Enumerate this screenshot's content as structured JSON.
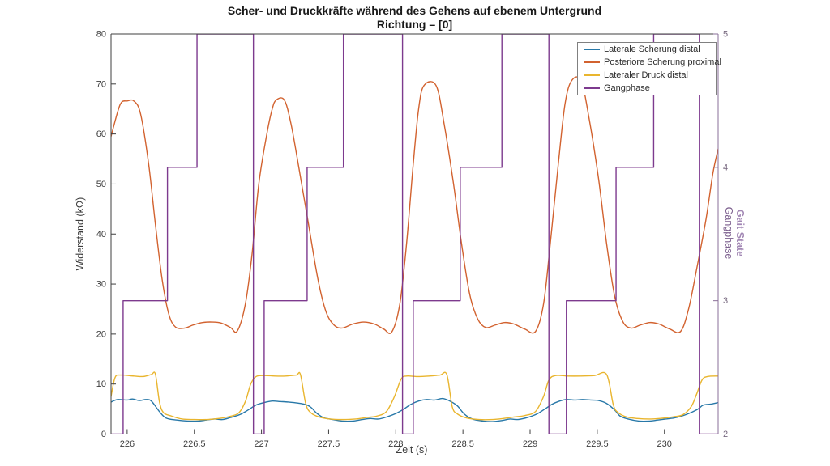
{
  "figure": {
    "title_line1": "Scher- und Druckkräfte während des Gehens auf ebenem Untergrund",
    "title_line2": "Richtung – [0]"
  },
  "chart_data": {
    "type": "line",
    "title": "Scher- und Druckkräfte während des Gehens auf ebenem Untergrund",
    "subtitle": "Richtung – [0]",
    "xlabel": "Zeit (s)",
    "ylabel_left": "Widerstand (kΩ)",
    "ylabel_right_line1": "Gangphase",
    "ylabel_right_line2": "Gait State",
    "grid": false,
    "legend_position": "top-right",
    "x_range": [
      225.88,
      230.4
    ],
    "x_ticks": [
      226,
      226.5,
      227,
      227.5,
      228,
      228.5,
      229,
      229.5,
      230
    ],
    "x_tick_labels": [
      "226",
      "226.5",
      "227",
      "227.5",
      "228",
      "228.5",
      "229",
      "229.5",
      "230"
    ],
    "y_left_range": [
      0,
      80
    ],
    "y_left_ticks": [
      0,
      10,
      20,
      30,
      40,
      50,
      60,
      70,
      80
    ],
    "y_right_range": [
      2,
      5
    ],
    "y_right_ticks": [
      2,
      3,
      4,
      5
    ],
    "axis_colors": {
      "left": "#3f3f3f",
      "bottom": "#3f3f3f",
      "top": "#3f3f3f",
      "right": "#8a6f98"
    },
    "series": [
      {
        "name": "Laterale Scherung distal",
        "color": "#2878a8",
        "axis": "left",
        "style": "smooth",
        "x": [
          225.88,
          225.93,
          226.0,
          226.04,
          226.09,
          226.14,
          226.18,
          226.24,
          226.29,
          226.37,
          226.45,
          226.53,
          226.59,
          226.65,
          226.71,
          226.77,
          226.84,
          226.9,
          226.96,
          227.02,
          227.08,
          227.14,
          227.2,
          227.27,
          227.33,
          227.37,
          227.41,
          227.46,
          227.53,
          227.6,
          227.68,
          227.75,
          227.81,
          227.87,
          227.93,
          228.0,
          228.06,
          228.11,
          228.17,
          228.23,
          228.29,
          228.35,
          228.41,
          228.46,
          228.51,
          228.57,
          228.65,
          228.72,
          228.79,
          228.85,
          228.91,
          228.98,
          229.05,
          229.11,
          229.16,
          229.21,
          229.27,
          229.33,
          229.39,
          229.45,
          229.51,
          229.57,
          229.63,
          229.67,
          229.73,
          229.81,
          229.89,
          229.95,
          230.01,
          230.07,
          230.13,
          230.19,
          230.25,
          230.29,
          230.35,
          230.4
        ],
        "y": [
          6.4,
          6.9,
          6.8,
          7.0,
          6.7,
          6.9,
          6.6,
          4.5,
          3.2,
          2.8,
          2.6,
          2.6,
          2.8,
          3.0,
          2.9,
          3.3,
          3.9,
          4.8,
          5.8,
          6.3,
          6.6,
          6.5,
          6.4,
          6.2,
          5.9,
          5.3,
          4.2,
          3.3,
          2.9,
          2.6,
          2.6,
          2.9,
          3.1,
          3.0,
          3.4,
          4.1,
          5.0,
          5.9,
          6.6,
          6.9,
          6.8,
          7.1,
          6.5,
          5.6,
          4.0,
          3.0,
          2.6,
          2.5,
          2.7,
          3.0,
          2.9,
          3.3,
          4.0,
          5.0,
          5.9,
          6.5,
          6.9,
          6.8,
          6.9,
          6.8,
          6.7,
          6.1,
          4.8,
          3.6,
          3.0,
          2.6,
          2.6,
          2.8,
          3.0,
          3.2,
          3.6,
          4.2,
          5.0,
          5.8,
          6.0,
          6.3
        ]
      },
      {
        "name": "Posteriore Scherung proximal",
        "color": "#d2622f",
        "axis": "left",
        "style": "smooth",
        "x": [
          225.88,
          225.93,
          225.96,
          226.0,
          226.05,
          226.1,
          226.16,
          226.21,
          226.26,
          226.31,
          226.36,
          226.43,
          226.49,
          226.56,
          226.63,
          226.7,
          226.77,
          226.82,
          226.88,
          226.93,
          226.98,
          227.04,
          227.08,
          227.11,
          227.17,
          227.22,
          227.28,
          227.35,
          227.42,
          227.48,
          227.54,
          227.6,
          227.68,
          227.76,
          227.84,
          227.91,
          227.97,
          228.03,
          228.08,
          228.13,
          228.17,
          228.21,
          228.3,
          228.36,
          228.43,
          228.49,
          228.55,
          228.61,
          228.67,
          228.74,
          228.81,
          228.88,
          228.96,
          229.04,
          229.1,
          229.15,
          229.21,
          229.26,
          229.31,
          229.38,
          229.44,
          229.51,
          229.57,
          229.63,
          229.69,
          229.75,
          229.82,
          229.89,
          229.96,
          230.04,
          230.12,
          230.18,
          230.24,
          230.31,
          230.36,
          230.4
        ],
        "y": [
          59.5,
          64.5,
          66.4,
          66.6,
          66.6,
          64.0,
          54.0,
          42.0,
          31.0,
          24.0,
          21.4,
          21.2,
          21.8,
          22.3,
          22.4,
          22.2,
          21.3,
          20.6,
          26.0,
          36.0,
          50.0,
          60.0,
          65.0,
          66.8,
          66.8,
          62.0,
          53.0,
          42.0,
          31.0,
          24.5,
          21.8,
          21.2,
          22.0,
          22.4,
          22.0,
          21.0,
          20.4,
          26.0,
          38.0,
          54.0,
          65.0,
          69.7,
          69.7,
          62.0,
          50.0,
          38.0,
          28.0,
          23.0,
          21.3,
          21.8,
          22.3,
          22.0,
          21.0,
          20.5,
          26.0,
          38.0,
          54.0,
          66.0,
          70.7,
          70.6,
          63.0,
          51.0,
          38.0,
          27.5,
          22.5,
          21.2,
          21.8,
          22.3,
          22.0,
          21.0,
          20.5,
          25.0,
          33.0,
          43.0,
          52.0,
          57.0
        ]
      },
      {
        "name": "Lateraler Druck distal",
        "color": "#e9b52e",
        "axis": "left",
        "style": "smooth",
        "x": [
          225.88,
          225.91,
          225.95,
          226.05,
          226.12,
          226.18,
          226.21,
          226.24,
          226.27,
          226.33,
          226.41,
          226.5,
          226.6,
          226.68,
          226.76,
          226.83,
          226.88,
          226.92,
          226.96,
          227.02,
          227.1,
          227.18,
          227.26,
          227.29,
          227.33,
          227.37,
          227.43,
          227.51,
          227.6,
          227.7,
          227.78,
          227.86,
          227.93,
          227.99,
          228.04,
          228.08,
          228.16,
          228.25,
          228.33,
          228.38,
          228.42,
          228.46,
          228.53,
          228.62,
          228.72,
          228.8,
          228.88,
          228.96,
          229.04,
          229.1,
          229.14,
          229.19,
          229.28,
          229.38,
          229.48,
          229.57,
          229.62,
          229.66,
          229.72,
          229.8,
          229.9,
          230.0,
          230.08,
          230.14,
          230.2,
          230.24,
          230.28,
          230.32,
          230.4
        ],
        "y": [
          7.5,
          11.3,
          11.8,
          11.6,
          11.5,
          11.9,
          12.0,
          6.5,
          4.3,
          3.6,
          3.0,
          2.9,
          2.9,
          3.1,
          3.5,
          4.2,
          6.5,
          10.0,
          11.5,
          11.7,
          11.6,
          11.6,
          11.8,
          11.9,
          6.0,
          4.2,
          3.4,
          3.0,
          2.9,
          3.0,
          3.3,
          3.6,
          4.5,
          7.5,
          11.0,
          11.6,
          11.5,
          11.6,
          11.8,
          11.9,
          5.5,
          4.0,
          3.2,
          2.9,
          2.9,
          3.1,
          3.4,
          3.7,
          4.5,
          7.5,
          10.8,
          11.7,
          11.6,
          11.6,
          11.7,
          11.9,
          5.8,
          4.2,
          3.4,
          3.1,
          3.0,
          3.2,
          3.5,
          3.9,
          5.5,
          8.0,
          10.8,
          11.5,
          11.6
        ]
      },
      {
        "name": "Gangphase",
        "color": "#7d3a8e",
        "axis": "right",
        "style": "step",
        "x": [
          225.88,
          225.97,
          225.97,
          226.3,
          226.3,
          226.52,
          226.52,
          226.94,
          226.94,
          227.02,
          227.02,
          227.34,
          227.34,
          227.61,
          227.61,
          228.05,
          228.05,
          228.13,
          228.13,
          228.48,
          228.48,
          228.79,
          228.79,
          229.14,
          229.14,
          229.27,
          229.27,
          229.64,
          229.64,
          229.92,
          229.92,
          230.26,
          230.26,
          230.4
        ],
        "y": [
          2,
          2,
          3,
          3,
          4,
          4,
          5,
          5,
          2,
          2,
          3,
          3,
          4,
          4,
          5,
          5,
          2,
          2,
          3,
          3,
          4,
          4,
          5,
          5,
          2,
          2,
          3,
          3,
          4,
          4,
          5,
          5,
          2,
          2
        ]
      }
    ]
  },
  "legend": {
    "items": [
      {
        "label": "Laterale Scherung distal",
        "color": "#2878a8"
      },
      {
        "label": "Posteriore Scherung proximal",
        "color": "#d2622f"
      },
      {
        "label": "Lateraler Druck distal",
        "color": "#e9b52e"
      },
      {
        "label": "Gangphase",
        "color": "#7d3a8e"
      }
    ]
  }
}
